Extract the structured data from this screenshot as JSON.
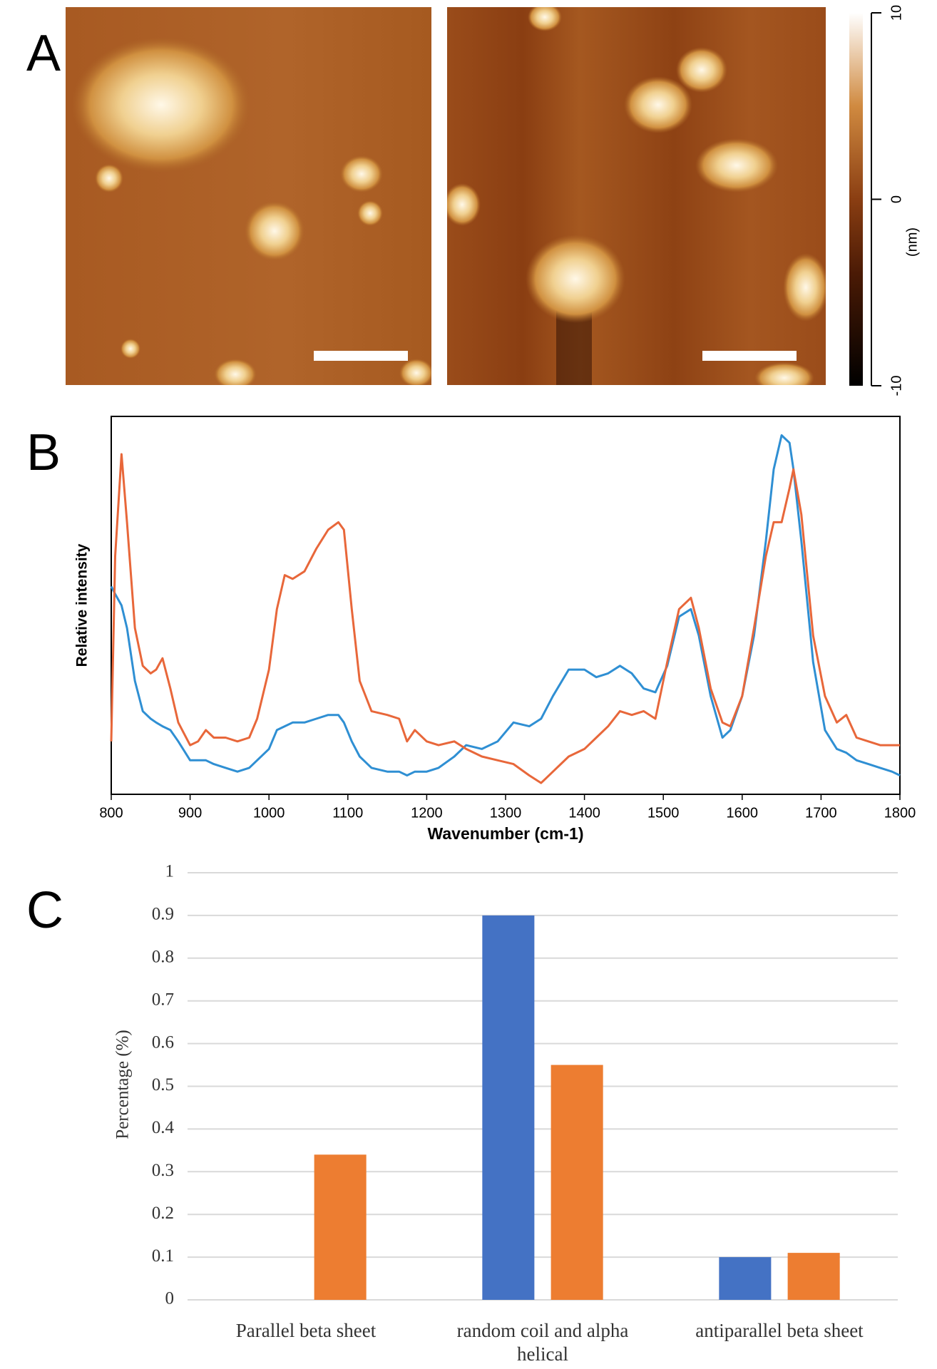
{
  "chart_data": [
    {
      "type": "image",
      "panel": "A",
      "colorbar": {
        "lim": [
          -10,
          10
        ],
        "ticks": [
          10,
          0,
          -10
        ],
        "label": "(nm)"
      }
    },
    {
      "type": "line",
      "panel": "B",
      "xlabel": "Wavenumber (cm-1)",
      "ylabel": "Relative intensity",
      "xlim": [
        800,
        1800
      ],
      "xticks": [
        800,
        900,
        1000,
        1100,
        1200,
        1300,
        1400,
        1500,
        1600,
        1700,
        1800
      ],
      "ylim": [
        0,
        1
      ],
      "x": [
        800,
        805,
        813,
        820,
        830,
        840,
        850,
        857,
        865,
        875,
        885,
        900,
        910,
        920,
        930,
        945,
        960,
        975,
        985,
        1000,
        1010,
        1020,
        1030,
        1045,
        1060,
        1075,
        1088,
        1095,
        1105,
        1115,
        1130,
        1150,
        1165,
        1175,
        1185,
        1200,
        1215,
        1235,
        1250,
        1270,
        1290,
        1310,
        1330,
        1345,
        1360,
        1380,
        1400,
        1415,
        1430,
        1445,
        1460,
        1475,
        1490,
        1505,
        1520,
        1535,
        1545,
        1560,
        1575,
        1585,
        1600,
        1615,
        1630,
        1640,
        1650,
        1660,
        1665,
        1675,
        1690,
        1705,
        1720,
        1732,
        1745,
        1760,
        1775,
        1790,
        1800
      ],
      "series": [
        {
          "color": "#2f8fd3",
          "values": [
            0.55,
            0.53,
            0.5,
            0.44,
            0.3,
            0.22,
            0.2,
            0.19,
            0.18,
            0.17,
            0.14,
            0.09,
            0.09,
            0.09,
            0.08,
            0.07,
            0.06,
            0.07,
            0.09,
            0.12,
            0.17,
            0.18,
            0.19,
            0.19,
            0.2,
            0.21,
            0.21,
            0.19,
            0.14,
            0.1,
            0.07,
            0.06,
            0.06,
            0.05,
            0.06,
            0.06,
            0.07,
            0.1,
            0.13,
            0.12,
            0.14,
            0.19,
            0.18,
            0.2,
            0.26,
            0.33,
            0.33,
            0.31,
            0.32,
            0.34,
            0.32,
            0.28,
            0.27,
            0.34,
            0.47,
            0.49,
            0.42,
            0.26,
            0.15,
            0.17,
            0.26,
            0.42,
            0.67,
            0.86,
            0.95,
            0.93,
            0.86,
            0.67,
            0.35,
            0.17,
            0.12,
            0.11,
            0.09,
            0.08,
            0.07,
            0.06,
            0.05
          ]
        },
        {
          "color": "#e8673a",
          "values": [
            0.14,
            0.63,
            0.9,
            0.72,
            0.44,
            0.34,
            0.32,
            0.33,
            0.36,
            0.28,
            0.19,
            0.13,
            0.14,
            0.17,
            0.15,
            0.15,
            0.14,
            0.15,
            0.2,
            0.33,
            0.49,
            0.58,
            0.57,
            0.59,
            0.65,
            0.7,
            0.72,
            0.7,
            0.49,
            0.3,
            0.22,
            0.21,
            0.2,
            0.14,
            0.17,
            0.14,
            0.13,
            0.14,
            0.12,
            0.1,
            0.09,
            0.08,
            0.05,
            0.03,
            0.06,
            0.1,
            0.12,
            0.15,
            0.18,
            0.22,
            0.21,
            0.22,
            0.2,
            0.35,
            0.49,
            0.52,
            0.44,
            0.28,
            0.19,
            0.18,
            0.26,
            0.44,
            0.63,
            0.72,
            0.72,
            0.81,
            0.86,
            0.74,
            0.42,
            0.26,
            0.19,
            0.21,
            0.15,
            0.14,
            0.13,
            0.13,
            0.13
          ]
        }
      ]
    },
    {
      "type": "bar",
      "panel": "C",
      "ylabel": "Percentage (%)",
      "categories": [
        "Parallel beta sheet",
        "random coil and alpha helical",
        "antiparallel beta sheet"
      ],
      "series": [
        {
          "color": "#4472c4",
          "values": [
            0,
            0.9,
            0.1
          ]
        },
        {
          "color": "#ed7d31",
          "values": [
            0.34,
            0.55,
            0.11
          ]
        }
      ],
      "ylim": [
        0,
        1
      ],
      "yticks": [
        0,
        0.1,
        0.2,
        0.3,
        0.4,
        0.5,
        0.6,
        0.7,
        0.8,
        0.9,
        1
      ],
      "grid": true
    }
  ]
}
